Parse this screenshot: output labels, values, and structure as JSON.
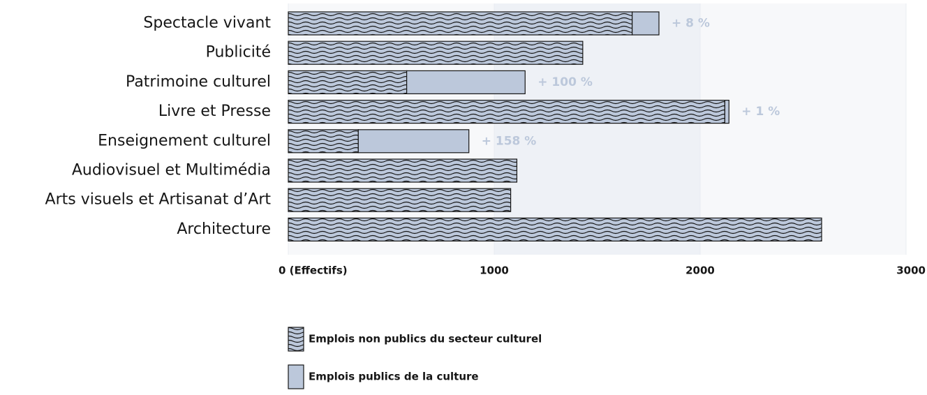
{
  "chart_data": {
    "type": "stacked-barh",
    "categories": [
      "Spectacle vivant",
      "Publicité",
      "Patrimoine culturel",
      "Livre et Presse",
      "Enseignement culturel",
      "Audiovisuel et Multimédia",
      "Arts visuels et Artisanat d’Art",
      "Architecture"
    ],
    "series": [
      {
        "name": "Emplois non publics du secteur culturel",
        "color": "#bcc8db",
        "pattern": "wave",
        "values": [
          1670,
          1430,
          575,
          2120,
          340,
          1110,
          1080,
          2590
        ]
      },
      {
        "name": "Emplois publics de la culture",
        "color": "#bcc8db",
        "values": [
          130,
          0,
          575,
          20,
          537,
          0,
          0,
          0
        ]
      }
    ],
    "annotations": [
      "+ 8 %",
      null,
      "+ 100 %",
      "+ 1 %",
      "+ 158 %",
      null,
      null,
      null
    ],
    "xlim": [
      0,
      3000
    ],
    "xticks": [
      {
        "value": 0,
        "label": "0 (Effectifs)"
      },
      1000,
      2000,
      3000
    ]
  }
}
